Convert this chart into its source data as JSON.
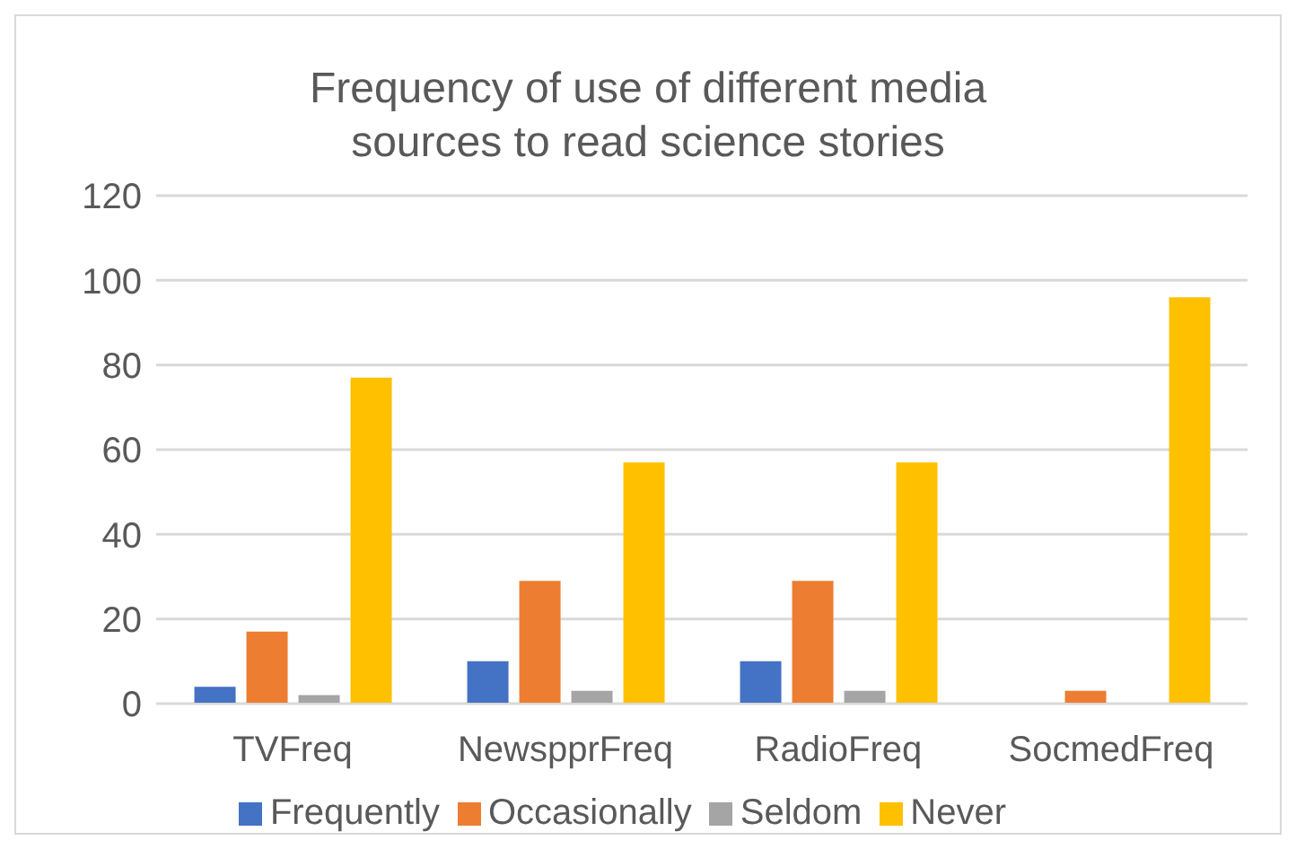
{
  "chart_data": {
    "type": "bar",
    "title": "Frequency of use of different media sources to read science stories",
    "categories": [
      "TVFreq",
      "NewspprFreq",
      "RadioFreq",
      "SocmedFreq"
    ],
    "series": [
      {
        "name": "Frequently",
        "color": "#4472c4",
        "values": [
          4,
          10,
          10,
          0
        ]
      },
      {
        "name": "Occasionally",
        "color": "#ed7d31",
        "values": [
          17,
          29,
          29,
          3
        ]
      },
      {
        "name": "Seldom",
        "color": "#a5a5a5",
        "values": [
          2,
          3,
          3,
          0
        ]
      },
      {
        "name": "Never",
        "color": "#ffc000",
        "values": [
          77,
          57,
          57,
          96
        ]
      }
    ],
    "ylim": [
      0,
      120
    ],
    "yticks": [
      0,
      20,
      40,
      60,
      80,
      100,
      120
    ],
    "grid": "y",
    "legend": "bottom"
  }
}
